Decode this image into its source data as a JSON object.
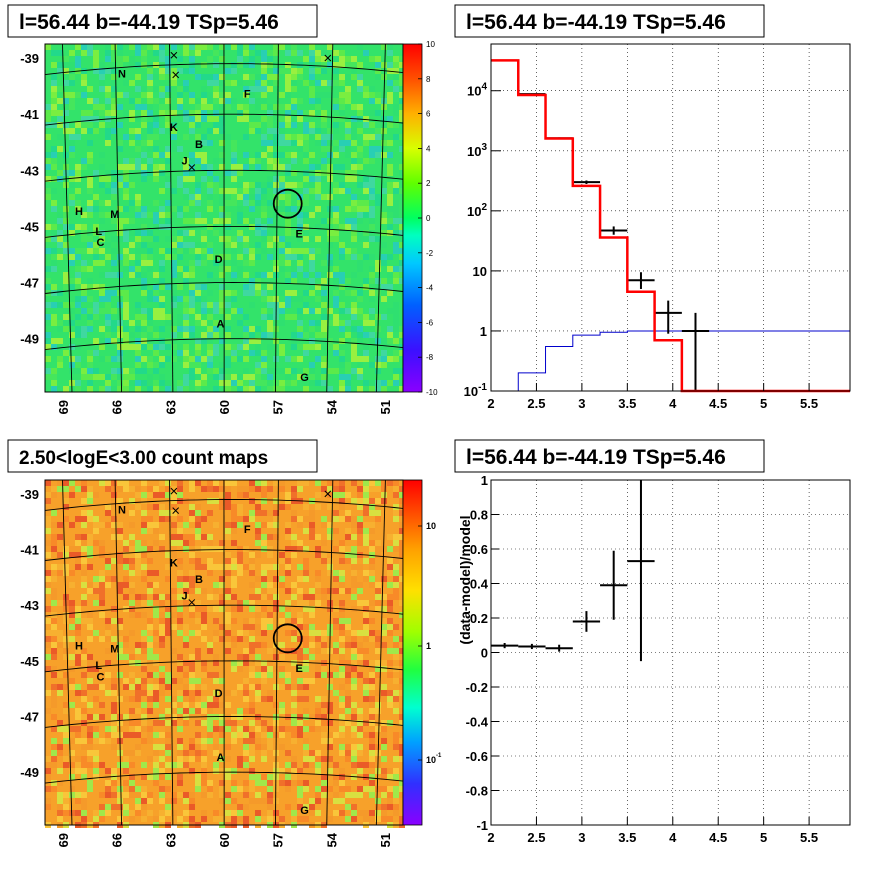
{
  "panels": {
    "tl_title": "l=56.44 b=-44.19 TSp=5.46",
    "tr_title": "l=56.44 b=-44.19 TSp=5.46",
    "bl_title": "2.50<logE<3.00 count maps",
    "br_title": "l=56.44 b=-44.19 TSp=5.46"
  },
  "colors": {
    "model_line": "#ff0000",
    "data_line": "#000000",
    "background_line": "#0000cc"
  },
  "chart_data": [
    {
      "type": "heatmap",
      "name": "significance map",
      "title": "l=56.44 b=-44.19 TSp=5.46",
      "x_ticks": [
        "69",
        "66",
        "63",
        "60",
        "57",
        "54",
        "51"
      ],
      "y_ticks": [
        "-39",
        "-41",
        "-43",
        "-45",
        "-47",
        "-49"
      ],
      "colorbar_ticks": [
        "10",
        "8",
        "6",
        "4",
        "2",
        "0",
        "-2",
        "-4",
        "-6",
        "-8",
        "-10"
      ],
      "colorbar_range": [
        -10,
        10
      ],
      "source_labels": [
        {
          "label": "N",
          "l": 65.7,
          "b": -39.7
        },
        {
          "label": "F",
          "l": 58.7,
          "b": -40.4
        },
        {
          "label": "K",
          "l": 62.8,
          "b": -41.6
        },
        {
          "label": "B",
          "l": 61.4,
          "b": -42.2
        },
        {
          "label": "J",
          "l": 62.2,
          "b": -42.8
        },
        {
          "label": "H",
          "l": 68.1,
          "b": -44.6
        },
        {
          "label": "M",
          "l": 66.1,
          "b": -44.7
        },
        {
          "label": "L",
          "l": 67.0,
          "b": -45.3
        },
        {
          "label": "C",
          "l": 66.9,
          "b": -45.7
        },
        {
          "label": "E",
          "l": 55.8,
          "b": -45.4
        },
        {
          "label": "D",
          "l": 60.3,
          "b": -46.3
        },
        {
          "label": "A",
          "l": 60.2,
          "b": -48.6
        },
        {
          "label": "G",
          "l": 55.5,
          "b": -50.5
        }
      ],
      "crosses": [
        {
          "l": 62.8,
          "b": -38.9
        },
        {
          "l": 62.7,
          "b": -39.6
        },
        {
          "l": 54.2,
          "b": -39.0
        },
        {
          "l": 61.8,
          "b": -42.9
        }
      ],
      "circle": {
        "l": 56.44,
        "b": -44.19
      }
    },
    {
      "type": "line",
      "name": "spectrum",
      "title": "l=56.44 b=-44.19 TSp=5.46",
      "x_ticks": [
        "2",
        "2.5",
        "3",
        "3.5",
        "4",
        "4.5",
        "5",
        "5.5"
      ],
      "y_ticks": [
        "10^-1",
        "1",
        "10",
        "10^2",
        "10^3",
        "10^4"
      ],
      "xlim": [
        2,
        5.95
      ],
      "ylim": [
        0.1,
        60000
      ],
      "log_y": true,
      "grid": true,
      "model_steps": {
        "edges": [
          2.0,
          2.3,
          2.6,
          2.9,
          3.2,
          3.5,
          3.8,
          4.1,
          4.4,
          5.95
        ],
        "values": [
          32000,
          8500,
          1600,
          260,
          36,
          4.5,
          0.7,
          0.1,
          0.1
        ]
      },
      "background_steps": {
        "edges": [
          2.0,
          2.3,
          2.6,
          2.9,
          3.2,
          3.5,
          3.8,
          4.1,
          4.4,
          5.95
        ],
        "values": [
          0.1,
          0.2,
          0.55,
          0.85,
          0.95,
          1.0,
          1.0,
          1.0,
          1.0
        ]
      },
      "data_points": [
        {
          "x": 2.45,
          "xerr": 0.15,
          "y": 8800,
          "ylo": 8700,
          "yhi": 8900
        },
        {
          "x": 2.75,
          "xerr": 0.15,
          "y": 1620,
          "ylo": 1570,
          "yhi": 1670
        },
        {
          "x": 3.05,
          "xerr": 0.15,
          "y": 300,
          "ylo": 280,
          "yhi": 320
        },
        {
          "x": 3.35,
          "xerr": 0.15,
          "y": 47,
          "ylo": 40,
          "yhi": 55
        },
        {
          "x": 3.65,
          "xerr": 0.15,
          "y": 7,
          "ylo": 5,
          "yhi": 9.5
        },
        {
          "x": 3.95,
          "xerr": 0.15,
          "y": 2,
          "ylo": 0.9,
          "yhi": 3.2
        },
        {
          "x": 4.25,
          "xerr": 0.15,
          "y": 1,
          "ylo": 0.1,
          "yhi": 2
        }
      ]
    },
    {
      "type": "heatmap",
      "name": "count map",
      "title": "2.50<logE<3.00 count maps",
      "x_ticks": [
        "69",
        "66",
        "63",
        "60",
        "57",
        "54",
        "51"
      ],
      "y_ticks": [
        "-39",
        "-41",
        "-43",
        "-45",
        "-47",
        "-49"
      ],
      "colorbar_ticks": [
        "10",
        "1",
        "10^-1"
      ],
      "colorbar_log": true
    },
    {
      "type": "scatter",
      "name": "residuals",
      "title": "l=56.44 b=-44.19 TSp=5.46",
      "ylabel": "(data-model)/model",
      "x_ticks": [
        "2",
        "2.5",
        "3",
        "3.5",
        "4",
        "4.5",
        "5",
        "5.5"
      ],
      "y_ticks": [
        "-1",
        "-0.8",
        "-0.6",
        "-0.4",
        "-0.2",
        "0",
        "0.2",
        "0.4",
        "0.6",
        "0.8",
        "1"
      ],
      "xlim": [
        2,
        5.95
      ],
      "ylim": [
        -1,
        1
      ],
      "grid": true,
      "points": [
        {
          "x": 2.15,
          "xerr": 0.15,
          "y": 0.04,
          "yerr": 0.015
        },
        {
          "x": 2.45,
          "xerr": 0.15,
          "y": 0.035,
          "yerr": 0.015
        },
        {
          "x": 2.75,
          "xerr": 0.15,
          "y": 0.025,
          "yerr": 0.02
        },
        {
          "x": 3.05,
          "xerr": 0.15,
          "y": 0.18,
          "yerr": 0.06
        },
        {
          "x": 3.35,
          "xerr": 0.15,
          "y": 0.39,
          "yerr": 0.2
        },
        {
          "x": 3.65,
          "xerr": 0.15,
          "y": 0.53,
          "yerr": 0.58
        }
      ]
    }
  ]
}
